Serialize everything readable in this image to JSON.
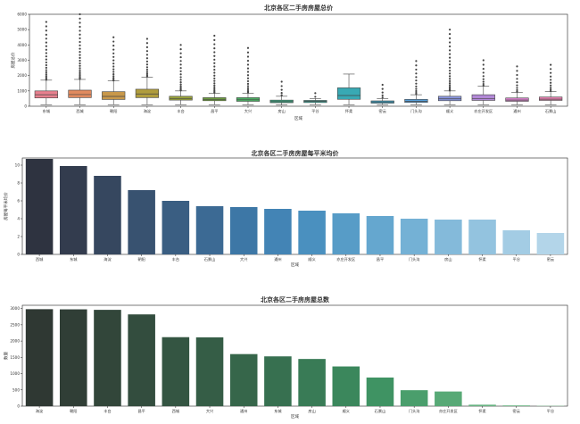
{
  "chart_data": [
    {
      "type": "box",
      "title": "北京各区二手房房屋总价",
      "xlabel": "区域",
      "ylabel": "房屋总价",
      "ylim": [
        0,
        6000
      ],
      "yticks": [
        0,
        1000,
        2000,
        3000,
        4000,
        5000,
        6000
      ],
      "grid": false,
      "legend": "none",
      "categories": [
        "东城",
        "西城",
        "朝阳",
        "海淀",
        "丰台",
        "昌平",
        "大兴",
        "房山",
        "平谷",
        "怀柔",
        "密云",
        "门头沟",
        "顺义",
        "亦庄开发区",
        "通州",
        "石景山"
      ],
      "boxes": [
        {
          "category": "东城",
          "q1": 540,
          "median": 750,
          "q3": 1000,
          "whisker_low": 100,
          "whisker_high": 1700,
          "outlier_max": 5500,
          "color": "#e8808e"
        },
        {
          "category": "西城",
          "q1": 560,
          "median": 760,
          "q3": 1050,
          "whisker_low": 100,
          "whisker_high": 1750,
          "outlier_max": 6000,
          "color": "#e18a5e"
        },
        {
          "category": "朝阳",
          "q1": 440,
          "median": 640,
          "q3": 950,
          "whisker_low": 100,
          "whisker_high": 1650,
          "outlier_max": 4500,
          "color": "#c8984a"
        },
        {
          "category": "海淀",
          "q1": 560,
          "median": 800,
          "q3": 1110,
          "whisker_low": 100,
          "whisker_high": 1900,
          "outlier_max": 4400,
          "color": "#b09d3d"
        },
        {
          "category": "丰台",
          "q1": 400,
          "median": 500,
          "q3": 650,
          "whisker_low": 100,
          "whisker_high": 1000,
          "outlier_max": 4000,
          "color": "#98a23c"
        },
        {
          "category": "昌平",
          "q1": 360,
          "median": 450,
          "q3": 560,
          "whisker_low": 100,
          "whisker_high": 850,
          "outlier_max": 4600,
          "color": "#73a83f"
        },
        {
          "category": "大兴",
          "q1": 320,
          "median": 420,
          "q3": 560,
          "whisker_low": 100,
          "whisker_high": 850,
          "outlier_max": 3800,
          "color": "#4caf63"
        },
        {
          "category": "房山",
          "q1": 230,
          "median": 300,
          "q3": 400,
          "whisker_low": 80,
          "whisker_high": 650,
          "outlier_max": 1600,
          "color": "#3ab089"
        },
        {
          "category": "平谷",
          "q1": 240,
          "median": 320,
          "q3": 380,
          "whisker_low": 100,
          "whisker_high": 500,
          "outlier_max": 850,
          "color": "#37ad9f"
        },
        {
          "category": "怀柔",
          "q1": 450,
          "median": 700,
          "q3": 1200,
          "whisker_low": 100,
          "whisker_high": 2100,
          "outlier_max": 2100,
          "color": "#38a9b4"
        },
        {
          "category": "密云",
          "q1": 200,
          "median": 280,
          "q3": 350,
          "whisker_low": 100,
          "whisker_high": 500,
          "outlier_max": 1400,
          "color": "#3da6c8"
        },
        {
          "category": "门头沟",
          "q1": 250,
          "median": 320,
          "q3": 450,
          "whisker_low": 100,
          "whisker_high": 750,
          "outlier_max": 2950,
          "color": "#56a0db"
        },
        {
          "category": "顺义",
          "q1": 360,
          "median": 480,
          "q3": 650,
          "whisker_low": 100,
          "whisker_high": 1000,
          "outlier_max": 5000,
          "color": "#8995dc"
        },
        {
          "category": "亦庄开发区",
          "q1": 380,
          "median": 500,
          "q3": 750,
          "whisker_low": 100,
          "whisker_high": 1300,
          "outlier_max": 3000,
          "color": "#b288d6"
        },
        {
          "category": "通州",
          "q1": 320,
          "median": 400,
          "q3": 540,
          "whisker_low": 100,
          "whisker_high": 900,
          "outlier_max": 2600,
          "color": "#d47fc8"
        },
        {
          "category": "石景山",
          "q1": 380,
          "median": 460,
          "q3": 600,
          "whisker_low": 100,
          "whisker_high": 950,
          "outlier_max": 2700,
          "color": "#e37dac"
        }
      ]
    },
    {
      "type": "bar",
      "title": "北京各区二手房房屋每平米均价",
      "xlabel": "区域",
      "ylabel": "房屋每平米均价",
      "ylim": [
        0,
        10.8
      ],
      "yticks": [
        0,
        2,
        4,
        6,
        8,
        10
      ],
      "grid": false,
      "legend": "none",
      "categories": [
        "西城",
        "东城",
        "海淀",
        "朝阳",
        "丰台",
        "石景山",
        "大兴",
        "通州",
        "顺义",
        "亦庄开发区",
        "昌平",
        "门头沟",
        "房山",
        "怀柔",
        "平谷",
        "密云"
      ],
      "values": [
        10.7,
        9.9,
        8.8,
        7.2,
        6.0,
        5.4,
        5.3,
        5.1,
        4.9,
        4.6,
        4.3,
        4.0,
        3.9,
        3.9,
        2.7,
        2.4
      ],
      "colors": [
        "#2e3340",
        "#333c4e",
        "#36475f",
        "#385270",
        "#3a5e82",
        "#3c6a94",
        "#3d77a6",
        "#4384b5",
        "#4a90bf",
        "#579cc7",
        "#65a7cf",
        "#74b1d5",
        "#84bada",
        "#93c3df",
        "#a3cce4",
        "#b3d5e9"
      ]
    },
    {
      "type": "bar",
      "title": "北京各区二手房房屋总数",
      "xlabel": "区域",
      "ylabel": "数量",
      "ylim": [
        0,
        3100
      ],
      "yticks": [
        0,
        500,
        1000,
        1500,
        2000,
        2500,
        3000
      ],
      "grid": false,
      "legend": "none",
      "categories": [
        "海淀",
        "朝阳",
        "丰台",
        "昌平",
        "西城",
        "大兴",
        "通州",
        "东城",
        "房山",
        "顺义",
        "石景山",
        "门头沟",
        "亦庄开发区",
        "怀柔",
        "密云",
        "平谷"
      ],
      "values": [
        2980,
        2975,
        2960,
        2820,
        2120,
        2115,
        1600,
        1530,
        1450,
        1220,
        880,
        490,
        450,
        45,
        25,
        10
      ],
      "colors": [
        "#2f3833",
        "#303e36",
        "#32463a",
        "#334d3e",
        "#345542",
        "#355d46",
        "#36664a",
        "#377050",
        "#397b56",
        "#3b875c",
        "#3f9363",
        "#4a9e6c",
        "#58a976",
        "#68b382",
        "#79bd8f",
        "#8ac69c"
      ]
    }
  ]
}
